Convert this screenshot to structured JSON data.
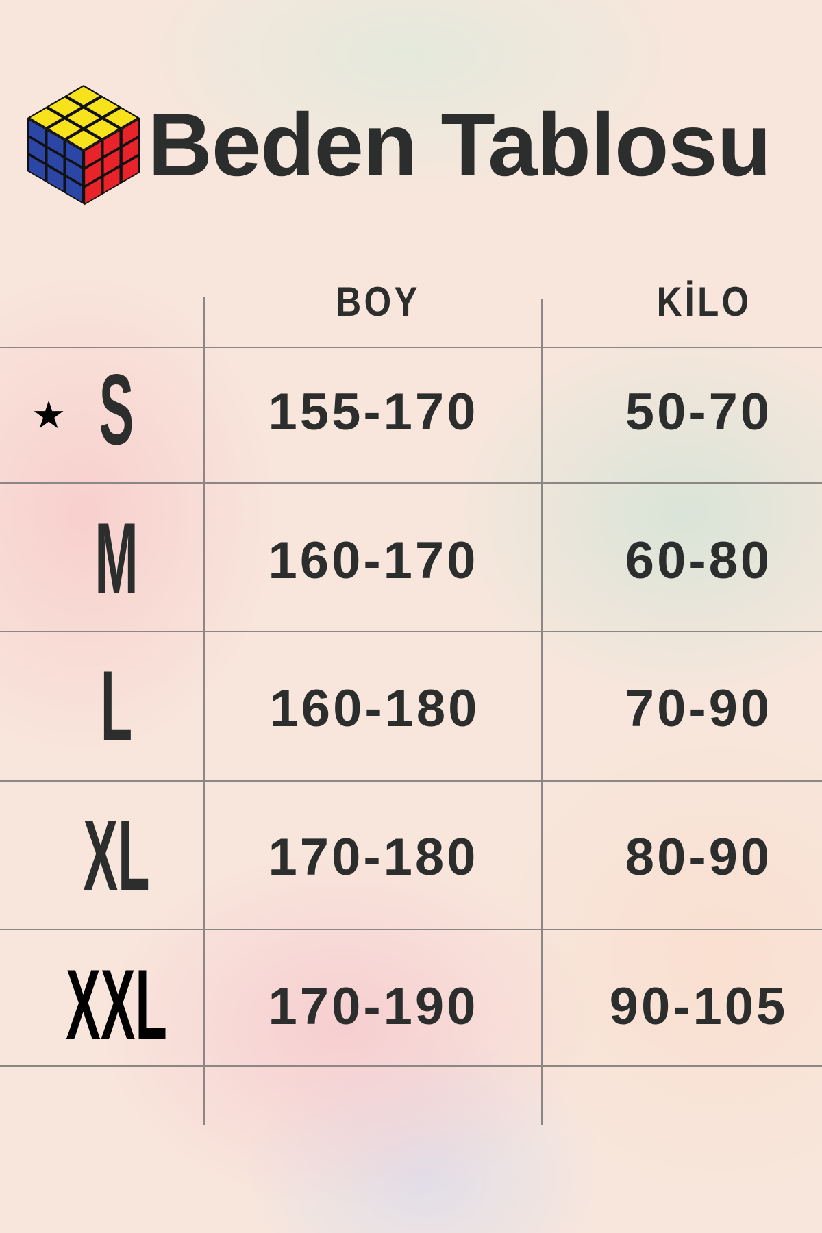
{
  "title": "Beden Tablosu",
  "logo": {
    "icon": "rubiks-cube-icon",
    "colors": {
      "top": "#f7e21b",
      "left": "#2c46a6",
      "right": "#e8242a"
    }
  },
  "headers": {
    "boy": "BOY",
    "kilo": "KİLO"
  },
  "rows": [
    {
      "size": "S",
      "boy": "155-170",
      "kilo": "50-70",
      "marked": true
    },
    {
      "size": "M",
      "boy": "160-170",
      "kilo": "60-80"
    },
    {
      "size": "L",
      "boy": "160-180",
      "kilo": "70-90"
    },
    {
      "size": "XL",
      "boy": "170-180",
      "kilo": "80-90"
    },
    {
      "size": "XXL",
      "boy": "170-190",
      "kilo": "90-105"
    }
  ],
  "star_icon": "★"
}
